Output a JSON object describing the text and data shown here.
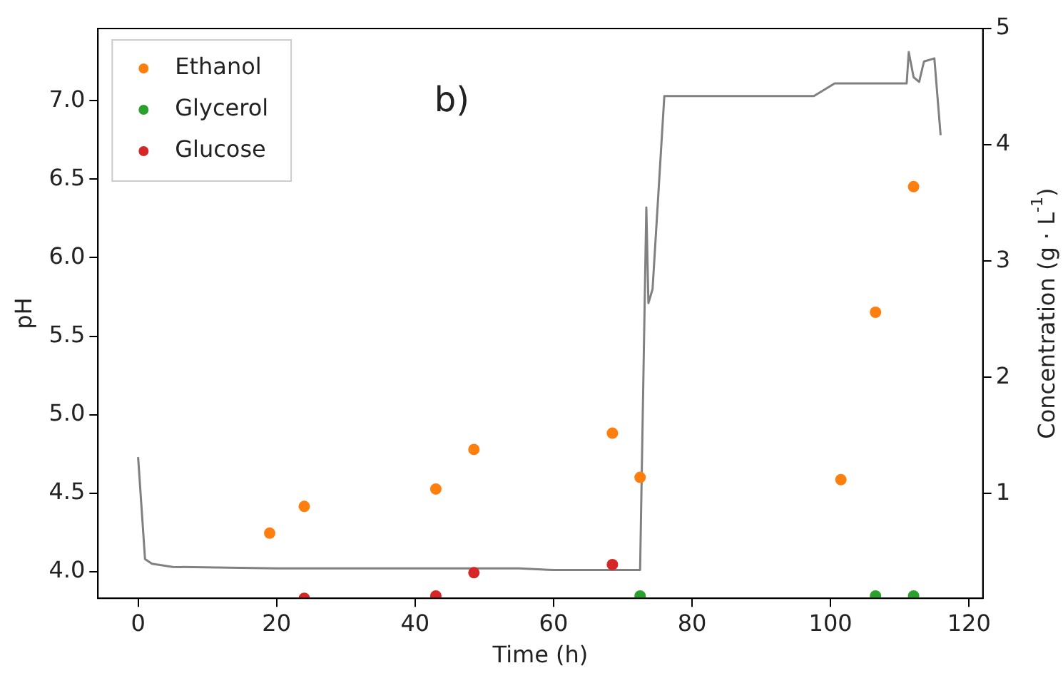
{
  "chart_data": {
    "type": "scatter",
    "xlabel": "Time (h)",
    "ylabel": "pH",
    "y2label": "Concentration (g · L$^{-1}$)",
    "annotations": [
      "b)"
    ],
    "xlim": [
      -5.8,
      122
    ],
    "xticks": [
      0,
      20,
      40,
      60,
      80,
      100,
      120
    ],
    "ylim": [
      3.83,
      7.46
    ],
    "yticks": [
      {
        "value": 4,
        "label": "4.0"
      },
      4.5,
      {
        "value": 5,
        "label": "5.0"
      },
      5.5,
      {
        "value": 6,
        "label": "6.0"
      },
      6.5,
      {
        "value": 7,
        "label": "7.0"
      }
    ],
    "y2lim": [
      0.1,
      5
    ],
    "y2ticks": [
      1,
      2,
      3,
      4,
      5
    ],
    "legend": "top left",
    "grid": false,
    "marker": "circle",
    "series": [
      {
        "name": "Ethanol",
        "color": "#ff7f0e",
        "axis": "y2",
        "x": [
          19,
          24,
          43,
          48.5,
          68.5,
          72.5,
          101.5,
          106.5,
          112
        ],
        "values": [
          0.66,
          0.89,
          1.04,
          1.38,
          1.52,
          1.14,
          1.12,
          2.56,
          3.64
        ]
      },
      {
        "name": "Glycerol",
        "color": "#2ca02c",
        "axis": "y2",
        "x": [
          72.5,
          106.5,
          112
        ],
        "values": [
          0.12,
          0.12,
          0.12
        ]
      },
      {
        "name": "Glucose",
        "color": "#d62728",
        "axis": "y2",
        "x": [
          24,
          43,
          48.5,
          68.5
        ],
        "values": [
          0.1,
          0.12,
          0.32,
          0.39
        ]
      },
      {
        "type": "line",
        "color": "#808080",
        "axis": "y",
        "marker": "none",
        "line_style": "solid",
        "x": [
          0,
          1,
          2,
          5,
          20,
          40,
          55,
          60,
          72.5,
          73,
          73.4,
          73.7,
          74.3,
          76,
          97.6,
          100.6,
          111,
          111.3,
          112,
          112.8,
          113.5,
          115,
          115.9
        ],
        "values": [
          4.73,
          4.08,
          4.05,
          4.03,
          4.02,
          4.02,
          4.02,
          4.01,
          4.01,
          5.3,
          6.32,
          5.71,
          5.8,
          7.03,
          7.03,
          7.11,
          7.11,
          7.31,
          7.15,
          7.12,
          7.25,
          7.27,
          6.78
        ]
      }
    ]
  }
}
